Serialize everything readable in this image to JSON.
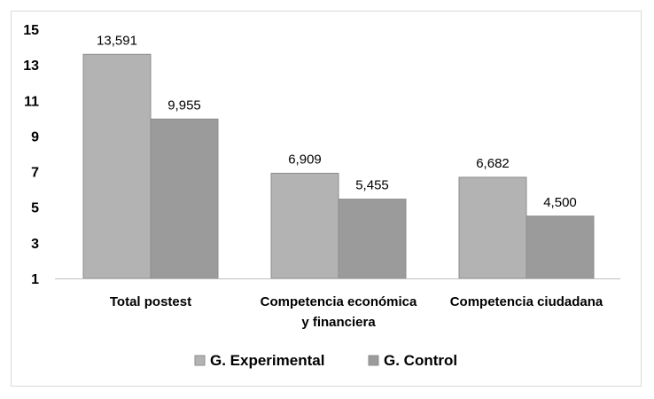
{
  "chart_data": {
    "type": "bar",
    "title": "",
    "xlabel": "",
    "ylabel": "",
    "ylim": [
      1,
      15
    ],
    "yticks": [
      1,
      3,
      5,
      7,
      9,
      11,
      13,
      15
    ],
    "grid": false,
    "legend_position": "bottom",
    "categories": [
      [
        "Total postest"
      ],
      [
        "Competencia económica",
        "y financiera"
      ],
      [
        "Competencia ciudadana"
      ]
    ],
    "series": [
      {
        "name": "G. Experimental",
        "color": "#b3b3b3",
        "values": [
          13.591,
          6.909,
          6.682
        ],
        "labels": [
          "13,591",
          "6,909",
          "6,682"
        ]
      },
      {
        "name": "G. Control",
        "color": "#9b9b9b",
        "values": [
          9.955,
          5.455,
          4.5
        ],
        "labels": [
          "9,955",
          "5,455",
          "4,500"
        ]
      }
    ]
  }
}
